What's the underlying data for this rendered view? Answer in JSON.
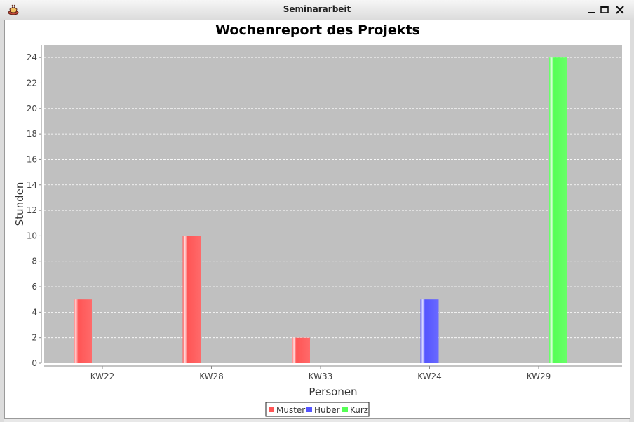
{
  "window": {
    "title": "Seminararbeit"
  },
  "chart_data": {
    "type": "bar",
    "title": "Wochenreport des Projekts",
    "xlabel": "Personen",
    "ylabel": "Stunden",
    "ylim": [
      0,
      25
    ],
    "yticks": [
      0,
      2,
      4,
      6,
      8,
      10,
      12,
      14,
      16,
      18,
      20,
      22,
      24
    ],
    "categories": [
      "KW22",
      "KW28",
      "KW33",
      "KW24",
      "KW29"
    ],
    "series": [
      {
        "name": "Muster",
        "color": "#ff5555",
        "values": [
          5,
          10,
          2,
          null,
          null
        ]
      },
      {
        "name": "Huber",
        "color": "#5555ff",
        "values": [
          null,
          null,
          null,
          5,
          null
        ]
      },
      {
        "name": "Kurz",
        "color": "#55ff55",
        "values": [
          null,
          null,
          null,
          null,
          24
        ]
      }
    ],
    "plot_background": "#c0c0c0",
    "grid": true,
    "legend": "bottom"
  }
}
